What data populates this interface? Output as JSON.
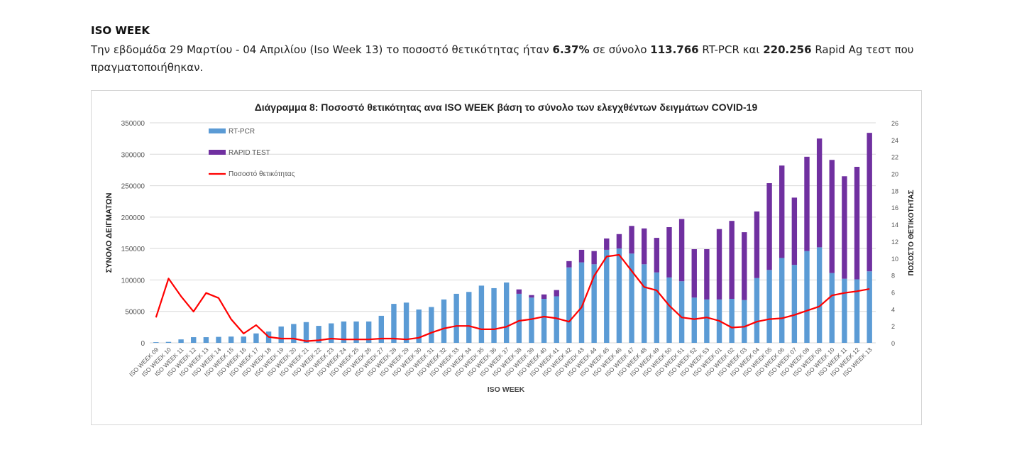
{
  "section": {
    "heading": "ISO WEEK",
    "sentence": {
      "p1": "Την εβδομάδα 29 Μαρτίου - 04 Απριλίου (Iso Week 13) το ποσοστό θετικότητας ήταν ",
      "b1": "6.37%",
      "p2": " σε σύνολο ",
      "b2": "113.766",
      "p3": " RT-PCR και ",
      "b3": "220.256",
      "p4": " Rapid Ag τεστ που πραγματοποιήθηκαν."
    }
  },
  "chart_data": {
    "type": "bar",
    "title": "Διάγραμμα 8: Ποσοστό  θετικότητας ανα ISO WEEK  βάση  το σύνολο των ελεγχθέντων δειγμάτων COVID-19",
    "xlabel": "ISO WEEK",
    "ylabel": "ΣΥΝΟΛΟ ΔΕΙΓΜΑΤΩΝ",
    "y2label": "ΠΟΣΟΣΤΟ ΘΕΤΙΚΟΤΗΤΑΣ",
    "ylim": [
      0,
      350000
    ],
    "y2lim": [
      0,
      26
    ],
    "yticks": [
      0,
      50000,
      100000,
      150000,
      200000,
      250000,
      300000,
      350000
    ],
    "y2ticks": [
      0,
      2,
      4,
      6,
      8,
      10,
      12,
      14,
      16,
      18,
      20,
      22,
      24,
      26
    ],
    "stacked": true,
    "grid": true,
    "legend_position": "top-left",
    "categories": [
      "ISO WEEK 09",
      "ISO WEEK 10",
      "ISO WEEK 11",
      "ISO WEEK 12",
      "ISO WEEK 13",
      "ISO WEEK 14",
      "ISO WEEK 15",
      "ISO WEEK 16",
      "ISO WEEK 17",
      "ISO WEEK 18",
      "ISO WEEK 19",
      "ISO WEEK 20",
      "ISO WEEK 21",
      "ISO WEEK 22",
      "ISO WEEK 23",
      "ISO WEEK 24",
      "ISO WEEK 25",
      "ISO WEEK 26",
      "ISO WEEK 27",
      "ISO WEEK 28",
      "ISO WEEK 29",
      "ISO WEEK 30",
      "ISO WEEK 31",
      "ISO WEEK 32",
      "ISO WEEK 33",
      "ISO WEEK 34",
      "ISO WEEK 35",
      "ISO WEEK 36",
      "ISO WEEK 37",
      "ISO WEEK 38",
      "ISO WEEK 39",
      "ISO WEEK 40",
      "ISO WEEK 41",
      "ISO WEEK 42",
      "ISO WEEK 43",
      "ISO WEEK 44",
      "ISO WEEK 45",
      "ISO WEEK 46",
      "ISO WEEK 47",
      "ISO WEEK 48",
      "ISO WEEK 49",
      "ISO WEEK 50",
      "ISO WEEK 51",
      "ISO WEEK 52",
      "ISO WEEK 53",
      "ISO WEEK 01",
      "ISO WEEK 02",
      "ISO WEEK 03",
      "ISO WEEK 04",
      "ISO WEEK 05",
      "ISO WEEK 06",
      "ISO WEEK 07",
      "ISO WEEK 08",
      "ISO WEEK 09",
      "ISO WEEK 10",
      "ISO WEEK 11",
      "ISO WEEK 12",
      "ISO WEEK 13"
    ],
    "series": [
      {
        "name": "RT-PCR",
        "kind": "bar",
        "color": "#5b9bd5",
        "values": [
          1000,
          1500,
          5500,
          9000,
          9000,
          9500,
          10000,
          10000,
          15000,
          18000,
          26000,
          30000,
          33000,
          27000,
          31000,
          34000,
          34000,
          34000,
          43000,
          62000,
          64000,
          53000,
          57000,
          69000,
          78000,
          81000,
          91000,
          87000,
          96000,
          78000,
          72000,
          70000,
          74000,
          120000,
          128000,
          125000,
          148000,
          150000,
          142000,
          125000,
          112000,
          104000,
          98000,
          72000,
          69000,
          69000,
          70000,
          68000,
          103000,
          116000,
          135000,
          124000,
          146000,
          152000,
          111000,
          102000,
          101000,
          113766
        ]
      },
      {
        "name": "RAPID TEST",
        "kind": "bar",
        "color": "#7030a0",
        "values": [
          0,
          0,
          0,
          0,
          0,
          0,
          0,
          0,
          0,
          0,
          0,
          0,
          0,
          0,
          0,
          0,
          0,
          0,
          0,
          0,
          0,
          0,
          0,
          0,
          0,
          0,
          0,
          0,
          0,
          7000,
          4000,
          7000,
          10000,
          10000,
          20000,
          21000,
          18000,
          23000,
          44000,
          57000,
          55000,
          80000,
          99000,
          77000,
          80000,
          112000,
          124000,
          108000,
          106000,
          138000,
          147000,
          107000,
          150000,
          173000,
          180000,
          163000,
          179000,
          220256
        ]
      },
      {
        "name": "Ποσοστό θετικότητας",
        "kind": "line",
        "color": "#ff0000",
        "axis": "right",
        "values": [
          3.0,
          7.6,
          5.5,
          3.7,
          5.9,
          5.3,
          2.8,
          1.1,
          2.1,
          0.7,
          0.5,
          0.5,
          0.2,
          0.3,
          0.5,
          0.4,
          0.4,
          0.4,
          0.5,
          0.5,
          0.4,
          0.6,
          1.2,
          1.7,
          2.0,
          2.0,
          1.6,
          1.6,
          1.9,
          2.6,
          2.8,
          3.1,
          2.9,
          2.5,
          4.2,
          7.9,
          10.2,
          10.4,
          8.5,
          6.6,
          6.2,
          4.4,
          3.0,
          2.8,
          3.0,
          2.6,
          1.8,
          1.9,
          2.5,
          2.8,
          2.9,
          3.3,
          3.8,
          4.3,
          5.6,
          5.9,
          6.1,
          6.37
        ]
      }
    ]
  }
}
